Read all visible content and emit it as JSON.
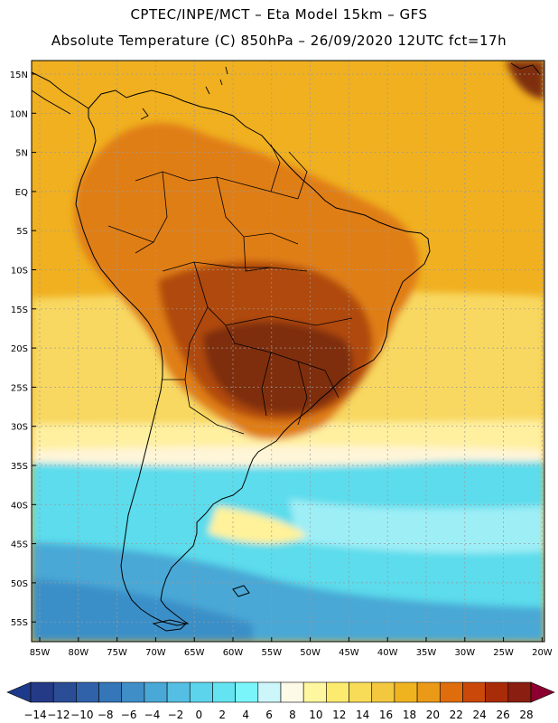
{
  "header": {
    "title_line1": "CPTEC/INPE/MCT –  Eta Model 15km – GFS",
    "title_line2": "Absolute Temperature (C) 850hPa – 26/09/2020 12UTC fct=17h"
  },
  "axes": {
    "lat_labels": [
      "15N",
      "10N",
      "5N",
      "EQ",
      "5S",
      "10S",
      "15S",
      "20S",
      "25S",
      "30S",
      "35S",
      "40S",
      "45S",
      "50S",
      "55S"
    ],
    "lon_labels": [
      "85W",
      "80W",
      "75W",
      "70W",
      "65W",
      "60W",
      "55W",
      "50W",
      "45W",
      "40W",
      "35W",
      "30W",
      "25W",
      "20W"
    ]
  },
  "colorbar": {
    "labels": [
      "-14",
      "-12",
      "-10",
      "-8",
      "-6",
      "-4",
      "-2",
      "0",
      "2",
      "4",
      "6",
      "8",
      "10",
      "12",
      "14",
      "16",
      "18",
      "20",
      "22",
      "24",
      "26",
      "28"
    ],
    "under_color": "#1e3a8a",
    "over_color": "#8b0030",
    "colors": [
      "#253a86",
      "#2b4d96",
      "#2f62a8",
      "#3576b8",
      "#3f8ec7",
      "#4aa8d6",
      "#55bfe3",
      "#5cd4ec",
      "#63e4f0",
      "#7af6fa",
      "#cdf6fb",
      "#fefae8",
      "#fff6a0",
      "#fdeb70",
      "#f8dc58",
      "#f3c83e",
      "#f0b320",
      "#eb9a18",
      "#e06d0c",
      "#c9480a",
      "#a82c08",
      "#8a1e10"
    ]
  },
  "palette": {
    "ocean_warm": "#f0b020",
    "continent_warm": "#e07e18",
    "continent_hot": "#b04a10",
    "hottest": "#7e2d0c",
    "mid_yellow": "#f8d860",
    "cool_cream": "#fff5d8",
    "cold_cyan": "#5cdcec",
    "cold_blue": "#3a8fc8",
    "coast_line": "#000000",
    "grid_line": "#9a9a9a"
  }
}
